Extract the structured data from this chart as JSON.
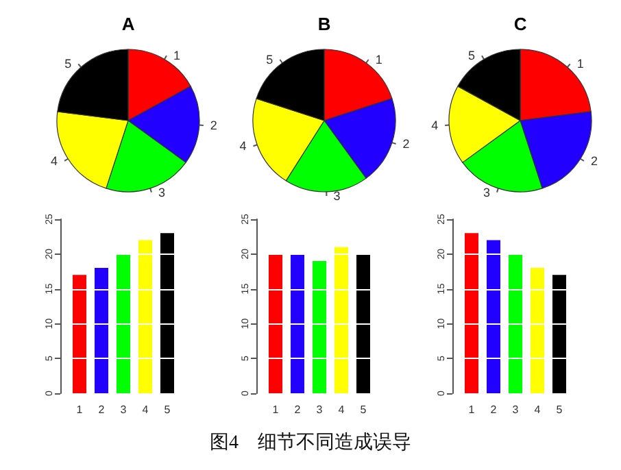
{
  "chart_data": [
    {
      "type": "pie",
      "title": "A",
      "categories": [
        "1",
        "2",
        "3",
        "4",
        "5"
      ],
      "values": [
        17,
        18,
        20,
        22,
        23
      ],
      "colors": [
        "#ff0000",
        "#2200ff",
        "#00ff00",
        "#ffff00",
        "#000000"
      ]
    },
    {
      "type": "pie",
      "title": "B",
      "categories": [
        "1",
        "2",
        "3",
        "4",
        "5"
      ],
      "values": [
        20,
        20,
        19,
        21,
        20
      ],
      "colors": [
        "#ff0000",
        "#2200ff",
        "#00ff00",
        "#ffff00",
        "#000000"
      ]
    },
    {
      "type": "pie",
      "title": "C",
      "categories": [
        "1",
        "2",
        "3",
        "4",
        "5"
      ],
      "values": [
        23,
        22,
        20,
        18,
        17
      ],
      "colors": [
        "#ff0000",
        "#2200ff",
        "#00ff00",
        "#ffff00",
        "#000000"
      ]
    },
    {
      "type": "bar",
      "categories": [
        "1",
        "2",
        "3",
        "4",
        "5"
      ],
      "values": [
        17,
        18,
        20,
        22,
        23
      ],
      "colors": [
        "#ff0000",
        "#2200ff",
        "#00ff00",
        "#ffff00",
        "#000000"
      ],
      "ylim": [
        0,
        25
      ],
      "yticks": [
        0,
        5,
        10,
        15,
        20,
        25
      ],
      "grid": "y"
    },
    {
      "type": "bar",
      "categories": [
        "1",
        "2",
        "3",
        "4",
        "5"
      ],
      "values": [
        20,
        20,
        19,
        21,
        20
      ],
      "colors": [
        "#ff0000",
        "#2200ff",
        "#00ff00",
        "#ffff00",
        "#000000"
      ],
      "ylim": [
        0,
        25
      ],
      "yticks": [
        0,
        5,
        10,
        15,
        20,
        25
      ],
      "grid": "y"
    },
    {
      "type": "bar",
      "categories": [
        "1",
        "2",
        "3",
        "4",
        "5"
      ],
      "values": [
        23,
        22,
        20,
        18,
        17
      ],
      "colors": [
        "#ff0000",
        "#2200ff",
        "#00ff00",
        "#ffff00",
        "#000000"
      ],
      "ylim": [
        0,
        25
      ],
      "yticks": [
        0,
        5,
        10,
        15,
        20,
        25
      ],
      "grid": "y",
      "annotations": [
        "图4　细节不同造成误导"
      ]
    }
  ]
}
